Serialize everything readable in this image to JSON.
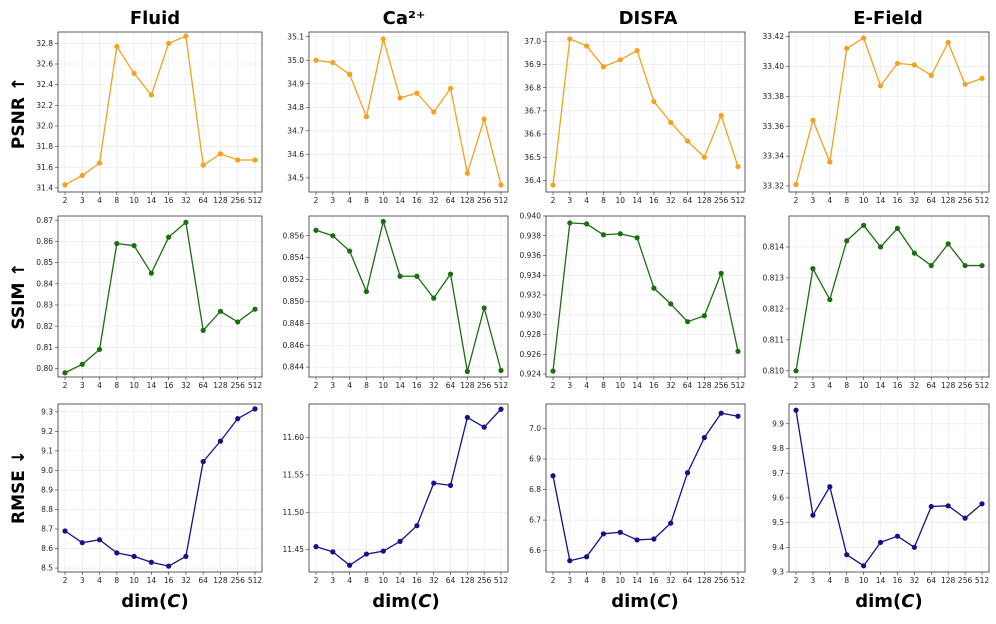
{
  "figure": {
    "columns": [
      "Fluid",
      "Ca²⁺",
      "DISFA",
      "E-Field"
    ],
    "rows": [
      {
        "metric": "PSNR",
        "arrow": "↑"
      },
      {
        "metric": "SSIM",
        "arrow": "↑"
      },
      {
        "metric": "RMSE",
        "arrow": "↓"
      }
    ],
    "xlabel_main": "dim(",
    "xlabel_var": "C",
    "xlabel_close": ")"
  },
  "colors": {
    "PSNR": "#f5a11f",
    "SSIM": "#1a6e10",
    "RMSE": "#12128a"
  },
  "chart_data": [
    {
      "type": "line",
      "dataset": "Fluid",
      "metric": "PSNR",
      "categories": [
        "2",
        "3",
        "4",
        "8",
        "10",
        "14",
        "16",
        "32",
        "64",
        "128",
        "256",
        "512"
      ],
      "values": [
        31.43,
        31.52,
        31.64,
        32.77,
        32.51,
        32.3,
        32.8,
        32.87,
        31.62,
        31.73,
        31.67,
        31.67
      ],
      "ylim": [
        31.36,
        32.91
      ],
      "yticks": [
        31.4,
        31.6,
        31.8,
        32.0,
        32.2,
        32.4,
        32.6,
        32.8
      ],
      "decimals": 1
    },
    {
      "type": "line",
      "dataset": "Ca²⁺",
      "metric": "PSNR",
      "categories": [
        "2",
        "3",
        "4",
        "8",
        "10",
        "14",
        "16",
        "32",
        "64",
        "128",
        "256",
        "512"
      ],
      "values": [
        35.0,
        34.99,
        34.94,
        34.76,
        35.09,
        34.84,
        34.86,
        34.78,
        34.88,
        34.52,
        34.75,
        34.47
      ],
      "ylim": [
        34.44,
        35.12
      ],
      "yticks": [
        34.5,
        34.6,
        34.7,
        34.8,
        34.9,
        35.0,
        35.1
      ],
      "decimals": 1
    },
    {
      "type": "line",
      "dataset": "DISFA",
      "metric": "PSNR",
      "categories": [
        "2",
        "3",
        "4",
        "8",
        "10",
        "14",
        "16",
        "32",
        "64",
        "128",
        "256",
        "512"
      ],
      "values": [
        36.38,
        37.01,
        36.98,
        36.89,
        36.92,
        36.96,
        36.74,
        36.65,
        36.57,
        36.5,
        36.68,
        36.46
      ],
      "ylim": [
        36.35,
        37.04
      ],
      "yticks": [
        36.4,
        36.5,
        36.6,
        36.7,
        36.8,
        36.9,
        37.0
      ],
      "decimals": 1
    },
    {
      "type": "line",
      "dataset": "E-Field",
      "metric": "PSNR",
      "categories": [
        "2",
        "3",
        "4",
        "8",
        "10",
        "14",
        "16",
        "32",
        "64",
        "128",
        "256",
        "512"
      ],
      "values": [
        33.321,
        33.364,
        33.336,
        33.412,
        33.419,
        33.387,
        33.402,
        33.401,
        33.394,
        33.416,
        33.388,
        33.392
      ],
      "ylim": [
        33.316,
        33.423
      ],
      "yticks": [
        33.32,
        33.34,
        33.36,
        33.38,
        33.4,
        33.42
      ],
      "decimals": 2
    },
    {
      "type": "line",
      "dataset": "Fluid",
      "metric": "SSIM",
      "categories": [
        "2",
        "3",
        "4",
        "8",
        "10",
        "14",
        "16",
        "32",
        "64",
        "128",
        "256",
        "512"
      ],
      "values": [
        0.798,
        0.802,
        0.809,
        0.859,
        0.858,
        0.845,
        0.862,
        0.869,
        0.818,
        0.827,
        0.822,
        0.828
      ],
      "ylim": [
        0.796,
        0.872
      ],
      "yticks": [
        0.8,
        0.81,
        0.82,
        0.83,
        0.84,
        0.85,
        0.86,
        0.87
      ],
      "decimals": 2
    },
    {
      "type": "line",
      "dataset": "Ca²⁺",
      "metric": "SSIM",
      "categories": [
        "2",
        "3",
        "4",
        "8",
        "10",
        "14",
        "16",
        "32",
        "64",
        "128",
        "256",
        "512"
      ],
      "values": [
        0.8565,
        0.856,
        0.8546,
        0.8509,
        0.8573,
        0.8523,
        0.8523,
        0.8503,
        0.8525,
        0.8436,
        0.8494,
        0.8437
      ],
      "ylim": [
        0.8431,
        0.8578
      ],
      "yticks": [
        0.844,
        0.846,
        0.848,
        0.85,
        0.852,
        0.854,
        0.856
      ],
      "decimals": 3
    },
    {
      "type": "line",
      "dataset": "DISFA",
      "metric": "SSIM",
      "categories": [
        "2",
        "3",
        "4",
        "8",
        "10",
        "14",
        "16",
        "32",
        "64",
        "128",
        "256",
        "512"
      ],
      "values": [
        0.9243,
        0.9393,
        0.9392,
        0.9381,
        0.9382,
        0.9378,
        0.9327,
        0.9311,
        0.9293,
        0.9299,
        0.9342,
        0.9263
      ],
      "ylim": [
        0.9237,
        0.94
      ],
      "yticks": [
        0.924,
        0.926,
        0.928,
        0.93,
        0.932,
        0.934,
        0.936,
        0.938,
        0.94
      ],
      "decimals": 3
    },
    {
      "type": "line",
      "dataset": "E-Field",
      "metric": "SSIM",
      "categories": [
        "2",
        "3",
        "4",
        "8",
        "10",
        "14",
        "16",
        "32",
        "64",
        "128",
        "256",
        "512"
      ],
      "values": [
        0.81,
        0.8133,
        0.8123,
        0.8142,
        0.8147,
        0.814,
        0.8146,
        0.8138,
        0.8134,
        0.8141,
        0.8134,
        0.8134
      ],
      "ylim": [
        0.8098,
        0.815
      ],
      "yticks": [
        0.81,
        0.811,
        0.812,
        0.813,
        0.814
      ],
      "decimals": 3
    },
    {
      "type": "line",
      "dataset": "Fluid",
      "metric": "RMSE",
      "categories": [
        "2",
        "3",
        "4",
        "8",
        "10",
        "14",
        "16",
        "32",
        "64",
        "128",
        "256",
        "512"
      ],
      "values": [
        8.69,
        8.63,
        8.645,
        8.578,
        8.56,
        8.53,
        8.51,
        8.56,
        9.045,
        9.15,
        9.265,
        9.315
      ],
      "ylim": [
        8.48,
        9.34
      ],
      "yticks": [
        8.5,
        8.6,
        8.7,
        8.8,
        8.9,
        9.0,
        9.1,
        9.2,
        9.3
      ],
      "decimals": 1
    },
    {
      "type": "line",
      "dataset": "Ca²⁺",
      "metric": "RMSE",
      "categories": [
        "2",
        "3",
        "4",
        "8",
        "10",
        "14",
        "16",
        "32",
        "64",
        "128",
        "256",
        "512"
      ],
      "values": [
        11.454,
        11.447,
        11.429,
        11.444,
        11.448,
        11.461,
        11.482,
        11.539,
        11.536,
        11.627,
        11.614,
        11.638
      ],
      "ylim": [
        11.42,
        11.645
      ],
      "yticks": [
        11.45,
        11.5,
        11.55,
        11.6
      ],
      "decimals": 2
    },
    {
      "type": "line",
      "dataset": "DISFA",
      "metric": "RMSE",
      "categories": [
        "2",
        "3",
        "4",
        "8",
        "10",
        "14",
        "16",
        "32",
        "64",
        "128",
        "256",
        "512"
      ],
      "values": [
        6.845,
        6.567,
        6.58,
        6.655,
        6.66,
        6.635,
        6.638,
        6.69,
        6.855,
        6.97,
        7.05,
        7.04
      ],
      "ylim": [
        6.53,
        7.08
      ],
      "yticks": [
        6.6,
        6.7,
        6.8,
        6.9,
        7.0
      ],
      "decimals": 1
    },
    {
      "type": "line",
      "dataset": "E-Field",
      "metric": "RMSE",
      "categories": [
        "2",
        "3",
        "4",
        "8",
        "10",
        "14",
        "16",
        "32",
        "64",
        "128",
        "256",
        "512"
      ],
      "values": [
        9.955,
        9.53,
        9.645,
        9.37,
        9.325,
        9.42,
        9.445,
        9.4,
        9.565,
        9.568,
        9.518,
        9.576
      ],
      "ylim": [
        9.3,
        9.98
      ],
      "yticks": [
        9.3,
        9.4,
        9.5,
        9.6,
        9.7,
        9.8,
        9.9
      ],
      "decimals": 1
    }
  ]
}
